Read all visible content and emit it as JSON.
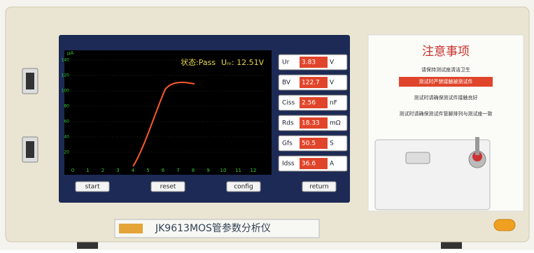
{
  "screen": {
    "status": "状态:Pass",
    "voltage": "Uₘ: 12.51V",
    "y_unit": "μA",
    "yticks": [
      20,
      40,
      60,
      80,
      100,
      120,
      140
    ],
    "xticks": [
      0,
      1,
      2,
      3,
      4,
      5,
      6,
      7,
      8,
      9,
      10,
      11,
      12
    ],
    "params": [
      {
        "label": "Ur",
        "value": "3.83",
        "unit": "V"
      },
      {
        "label": "BV",
        "value": "122.7",
        "unit": "V"
      },
      {
        "label": "Ciss",
        "value": "2.56",
        "unit": "nF"
      },
      {
        "label": "Rds",
        "value": "18.33",
        "unit": "mΩ"
      },
      {
        "label": "Gfs",
        "value": "50.5",
        "unit": "S"
      },
      {
        "label": "Idss",
        "value": "36.6",
        "unit": "A"
      }
    ],
    "buttons": [
      "start",
      "reset",
      "config",
      "return"
    ]
  },
  "notice": {
    "title": "注意事项",
    "lines": [
      "请保持测试座清洁卫生",
      "测试时严禁接触被测试件",
      "测试时请确保测试件接触良好",
      "测试时请确保测试件管脚排列与测试座一致"
    ]
  },
  "model": "JK9613MOS管参数分析仪"
}
